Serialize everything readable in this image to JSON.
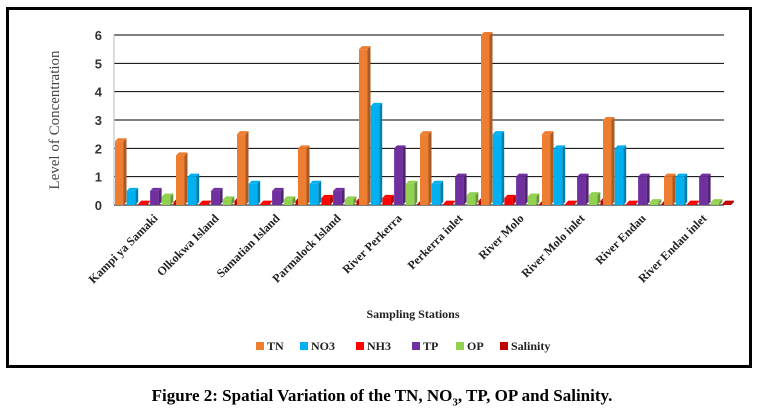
{
  "chart_data": {
    "type": "bar",
    "title": "",
    "xlabel": "Sampling Stations",
    "ylabel": "Level of Concentration",
    "ylim": [
      0,
      6
    ],
    "yticks": [
      "0",
      "1",
      "2",
      "3",
      "4",
      "5",
      "6"
    ],
    "grid": true,
    "legend_position": "bottom",
    "categories": [
      "Kampi ya Samaki",
      "Olkokwa Island",
      "Samatian Island",
      "Parmalock Island",
      "River Perkerra",
      "Perkerra inlet",
      "River Molo",
      "River Molo inlet",
      "River Endau",
      "River Endau inlet"
    ],
    "series": [
      {
        "name": "TN",
        "color": "#ED7D31",
        "values": [
          2.25,
          1.75,
          2.5,
          2.0,
          5.5,
          2.5,
          6.0,
          2.5,
          3.0,
          1.0
        ]
      },
      {
        "name": "NO3",
        "color": "#00B0F0",
        "values": [
          0.5,
          1.0,
          0.75,
          0.75,
          3.5,
          0.75,
          2.5,
          2.0,
          2.0,
          1.0
        ]
      },
      {
        "name": "NH3",
        "color": "#FF0000",
        "values": [
          0.05,
          0.05,
          0.05,
          0.25,
          0.25,
          0.05,
          0.25,
          0.05,
          0.05,
          0.05
        ]
      },
      {
        "name": "TP",
        "color": "#7030A0",
        "values": [
          0.5,
          0.5,
          0.5,
          0.5,
          2.0,
          1.0,
          1.0,
          1.0,
          1.0,
          1.0
        ]
      },
      {
        "name": "OP",
        "color": "#92D050",
        "values": [
          0.3,
          0.2,
          0.2,
          0.2,
          0.75,
          0.35,
          0.3,
          0.35,
          0.1,
          0.1
        ]
      },
      {
        "name": "Salinity",
        "color": "#C00000",
        "values": [
          0.1,
          0.15,
          0.15,
          0.15,
          0.05,
          0.15,
          0.05,
          0.15,
          0.05,
          0.05
        ]
      }
    ]
  },
  "caption": {
    "prefix": "Figure 2: Spatial Variation of the TN, NO",
    "sub": "3",
    "suffix": ", TP, OP and Salinity."
  }
}
